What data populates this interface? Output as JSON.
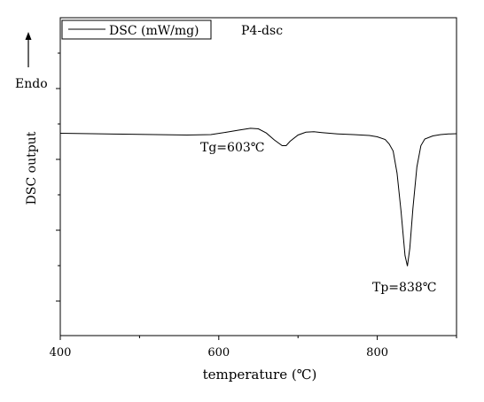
{
  "chart_data": {
    "type": "line",
    "ylabel": "DSC output",
    "xlabel": "temperature (℃)",
    "xlim": [
      400,
      900
    ],
    "x_ticks": [
      400,
      600,
      800
    ],
    "grid": false,
    "legend": {
      "entry": "DSC (mW/mg)",
      "position": "top-left"
    },
    "sample_label": "P4-dsc",
    "direction_label": "Endo",
    "series": [
      {
        "name": "DSC (mW/mg)",
        "color": "#000000",
        "x": [
          400,
          440,
          480,
          520,
          560,
          590,
          610,
          625,
          640,
          650,
          660,
          670,
          680,
          685,
          690,
          700,
          710,
          720,
          730,
          750,
          770,
          790,
          800,
          810,
          815,
          820,
          825,
          830,
          835,
          838,
          841,
          845,
          850,
          855,
          860,
          870,
          880,
          890,
          900
        ],
        "y": [
          0,
          -0.5,
          -1,
          -1.5,
          -2,
          -1.5,
          1.2,
          3.5,
          5.6,
          5.0,
          0.3,
          -7.5,
          -14,
          -14,
          -9,
          -2,
          1.2,
          1.7,
          0.8,
          -0.7,
          -1.5,
          -2.5,
          -4,
          -7,
          -12,
          -20,
          -45,
          -88,
          -138,
          -150,
          -130,
          -85,
          -38,
          -14,
          -6.5,
          -3,
          -1.5,
          -0.8,
          -0.5
        ]
      }
    ],
    "annotations": [
      {
        "text": "Tg=603℃",
        "x": 603
      },
      {
        "text": "Tp=838℃",
        "x": 838
      }
    ]
  }
}
